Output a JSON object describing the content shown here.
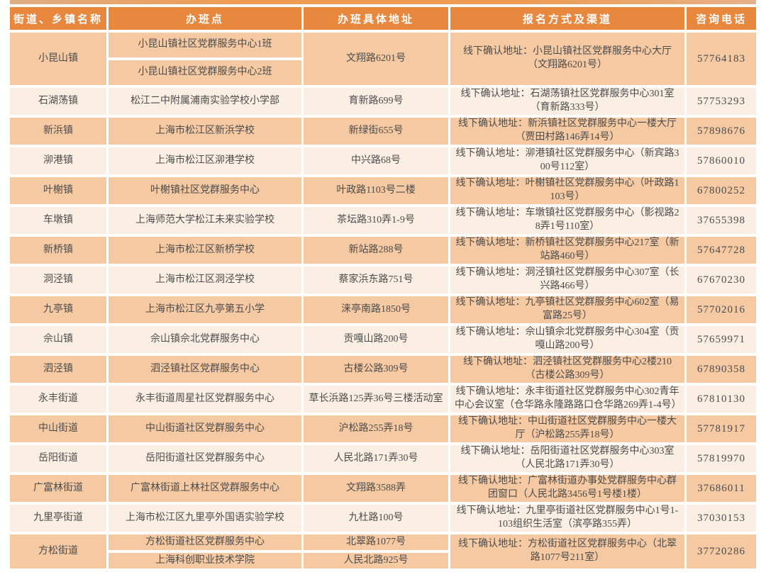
{
  "colors": {
    "header_bg": "#e8873e",
    "row_dark_bg": "#f5c9a2",
    "row_light_bg": "#fbefe3",
    "header_text": "#ffffff",
    "body_text": "#4c4c4c"
  },
  "table": {
    "headers": [
      "街道、乡镇名称",
      "办班点",
      "办班具体地址",
      "报名方式及渠道",
      "咨询电话"
    ],
    "rows": [
      {
        "town": "小昆山镇",
        "sites": [
          "小昆山镇社区党群服务中心1班",
          "小昆山镇社区党群服务中心2班"
        ],
        "address": "文翔路6201号",
        "reg": "线下确认地址：小昆山镇社区党群服务中心大厅（文翔路6201号）",
        "phone": "57764183"
      },
      {
        "town": "石湖荡镇",
        "site": "松江二中附属浦南实验学校小学部",
        "address": "育新路699号",
        "reg": "线下确认地址：石湖荡镇社区党群服务中心301室（育新路333号）",
        "phone": "57753293"
      },
      {
        "town": "新浜镇",
        "site": "上海市松江区新浜学校",
        "address": "新绿街655号",
        "reg": "线下确认地址：新浜镇社区党群服务中心一楼大厅（贾田村路146弄14号）",
        "phone": "57898676"
      },
      {
        "town": "泖港镇",
        "site": "上海市松江区泖港学校",
        "address": "中兴路68号",
        "reg": "线下确认地址：泖港镇社区党群服务中心（新宾路300号112室）",
        "phone": "57860010"
      },
      {
        "town": "叶榭镇",
        "site": "叶榭镇社区党群服务中心",
        "address": "叶政路1103号二楼",
        "reg": "线下确认地址：叶榭镇社区党群服务中心（叶政路1103号）",
        "phone": "67800252"
      },
      {
        "town": "车墩镇",
        "site": "上海师范大学松江未来实验学校",
        "address": "茶坛路310弄1-9号",
        "reg": "线下确认地址：车墩镇社区党群服务中心（影视路28弄1号110室）",
        "phone": "37655398"
      },
      {
        "town": "新桥镇",
        "site": "上海市松江区新桥学校",
        "address": "新站路288号",
        "reg": "线下确认地址：新桥镇社区党群服务中心217室（新站路460号）",
        "phone": "57647728"
      },
      {
        "town": "洞泾镇",
        "site": "上海市松江区洞泾学校",
        "address": "蔡家浜东路751号",
        "reg": "线下确认地址：洞泾镇社区党群服务中心307室（长兴路466号）",
        "phone": "67670230"
      },
      {
        "town": "九亭镇",
        "site": "上海市松江区九亭第五小学",
        "address": "涞亭南路1850号",
        "reg": "线下确认地址：九亭镇社区党群服务中心602室（易富路25号）",
        "phone": "57702016"
      },
      {
        "town": "佘山镇",
        "site": "佘山镇佘北党群服务中心",
        "address": "贡嘎山路200号",
        "reg": "线下确认地址：佘山镇佘北党群服务中心304室（贡嘎山路200号）",
        "phone": "57659971"
      },
      {
        "town": "泗泾镇",
        "site": "泗泾镇社区党群服务中心",
        "address": "古楼公路309号",
        "reg": "线下确认地址：泗泾镇社区党群服务中心2楼210（古楼公路309号）",
        "phone": "67890358"
      },
      {
        "town": "永丰街道",
        "site": "永丰街道周星社区党群服务中心",
        "address": "草长浜路125弄36号三楼活动室",
        "reg": "线下确认地址：永丰街道社区党群服务中心302青年中心会议室（仓华路永隆路路口仓华路269弄1-4号）",
        "phone": "67810130"
      },
      {
        "town": "中山街道",
        "site": "中山街道社区党群服务中心",
        "address": "沪松路255弄18号",
        "reg": "线下确认地址：中山街道社区党群服务中心一楼大厅（沪松路255弄18号）",
        "phone": "57781917"
      },
      {
        "town": "岳阳街道",
        "site": "岳阳街道社区党群服务中心",
        "address": "人民北路171弄30号",
        "reg": "线下确认地址：岳阳街道社区党群服务中心303室（人民北路171弄30号）",
        "phone": "57819970"
      },
      {
        "town": "广富林街道",
        "site": "广富林街道上林社区党群服务中心",
        "address": "文翔路3588弄",
        "reg": "线下确认地址：广富林街道办事处党群服务中心群团窗口（人民北路3456号1号楼1楼）",
        "phone": "37686011"
      },
      {
        "town": "九里亭街道",
        "site": "上海市松江区九里亭外国语实验学校",
        "address": "九杜路100号",
        "reg": "线下确认地址：九里亭街道社区党群服务中心1号1-103组织生活室（滨亭路355弄）",
        "phone": "37030153"
      },
      {
        "town": "方松街道",
        "sites": [
          "方松街道社区党群服务中心",
          "上海科创职业技术学院"
        ],
        "addresses": [
          "北翠路1077号",
          "人民北路925号"
        ],
        "reg": "线下确认地址：方松街道社区党群服务中心（北翠路1077号211室）",
        "phone": "37720286"
      }
    ]
  }
}
